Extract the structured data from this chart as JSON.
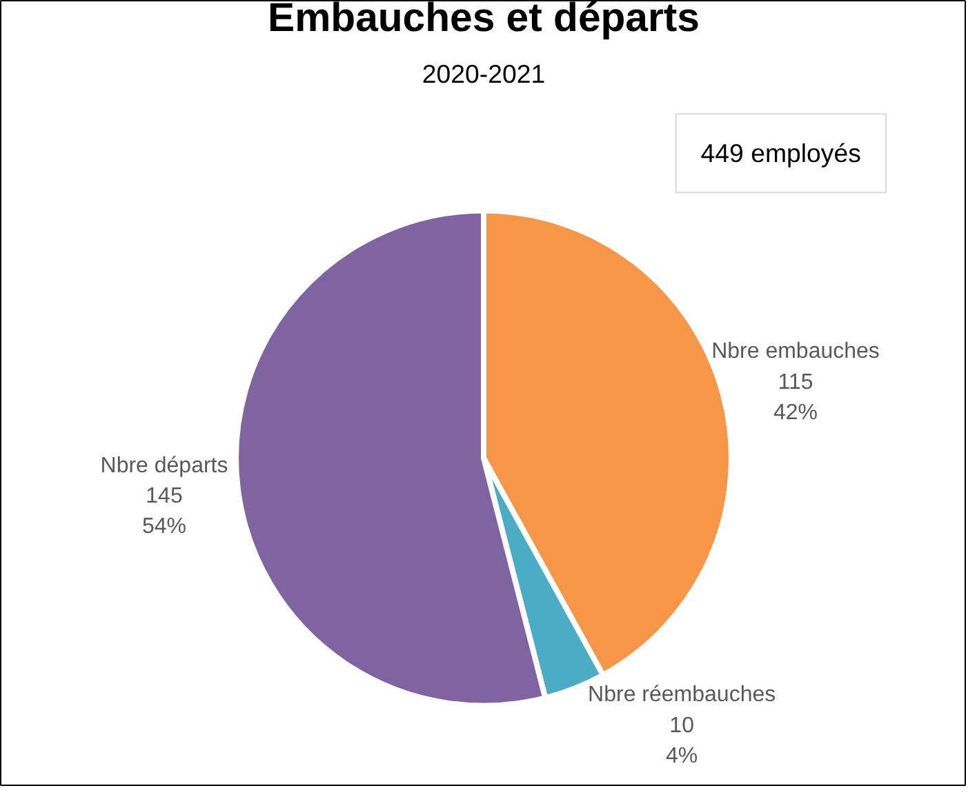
{
  "chart_data": {
    "type": "pie",
    "title": "Embauches et départs",
    "subtitle": "2020-2021",
    "categories": [
      "Nbre embauches",
      "Nbre réembauches",
      "Nbre départs"
    ],
    "values": [
      42,
      4,
      54
    ],
    "colors": [
      "#f79646",
      "#4bacc6",
      "#8064a2"
    ],
    "data_labels": true,
    "value_labels": [
      "115\n42%",
      "10\n4%",
      "145\n54%"
    ],
    "annotations": [
      "449 employés"
    ]
  }
}
